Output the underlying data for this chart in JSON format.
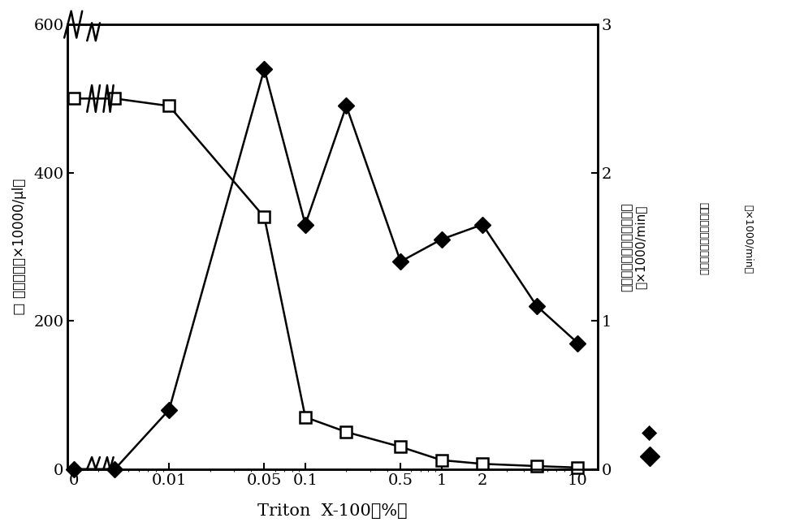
{
  "xlabel": "Triton  X-100（%）",
  "ylabel_left": "□ 细胞数量（×10000/μl）",
  "ylabel_right": "计数的白细胞细胞核的数量\n（×1000/min）",
  "ylim_left": [
    0,
    600
  ],
  "ylim_right": [
    0,
    3
  ],
  "xlim": [
    0.0018,
    14
  ],
  "square_x": [
    0.002,
    0.004,
    0.01,
    0.05,
    0.1,
    0.2,
    0.5,
    1.0,
    2.0,
    5.0,
    10.0
  ],
  "square_y": [
    500,
    500,
    490,
    340,
    70,
    50,
    30,
    12,
    7,
    4,
    2
  ],
  "diamond_x": [
    0.002,
    0.004,
    0.01,
    0.05,
    0.1,
    0.2,
    0.5,
    1.0,
    2.0,
    5.0,
    10.0
  ],
  "diamond_y": [
    0.0,
    0.0,
    0.4,
    2.7,
    1.65,
    2.45,
    1.4,
    1.55,
    1.65,
    1.1,
    0.85
  ],
  "xtick_positions": [
    0.002,
    0.01,
    0.05,
    0.1,
    0.5,
    1.0,
    2.0,
    10.0
  ],
  "xtick_labels": [
    "0",
    "0.01",
    "0.05",
    "0.1",
    "0.5",
    "1",
    "2",
    "10"
  ],
  "ytick_left": [
    0,
    200,
    400,
    600
  ],
  "ytick_right": [
    0,
    1,
    2,
    3
  ],
  "background_color": "#ffffff",
  "line_color": "#000000"
}
